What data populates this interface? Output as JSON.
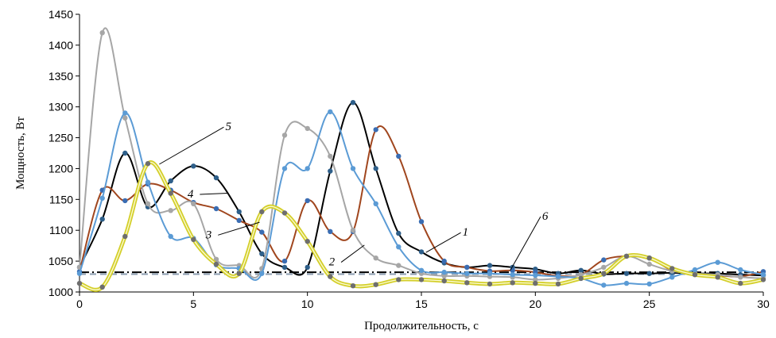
{
  "chart_data": {
    "type": "line",
    "title": "",
    "xlabel": "Продолжительность, с",
    "ylabel": "Мощность, Вт",
    "xlim": [
      0,
      30
    ],
    "ylim": [
      1000,
      1450
    ],
    "xticks": [
      0,
      5,
      10,
      15,
      20,
      25,
      30
    ],
    "yticks": [
      1000,
      1050,
      1100,
      1150,
      1200,
      1250,
      1300,
      1350,
      1400,
      1450
    ],
    "grid": false,
    "legend": "none",
    "series": [
      {
        "key": "black",
        "color": "#000000",
        "marker": "#2e5f8a",
        "style": "line",
        "x": [
          0,
          1,
          2,
          3,
          4,
          5,
          6,
          7,
          8,
          9,
          10,
          11,
          12,
          13,
          14,
          15,
          16,
          17,
          18,
          19,
          20,
          21,
          22,
          23,
          24,
          25,
          26,
          27,
          28,
          29,
          30
        ],
        "y": [
          1040,
          1118,
          1225,
          1138,
          1180,
          1204,
          1185,
          1130,
          1062,
          1040,
          1040,
          1196,
          1307,
          1200,
          1095,
          1065,
          1047,
          1040,
          1043,
          1040,
          1037,
          1030,
          1035,
          1029,
          1030,
          1030,
          1031,
          1030,
          1030,
          1028,
          1027
        ]
      },
      {
        "key": "brown",
        "color": "#a0461e",
        "marker": "#3a6db3",
        "style": "line",
        "x": [
          0,
          1,
          2,
          3,
          4,
          5,
          6,
          7,
          8,
          9,
          10,
          11,
          12,
          13,
          14,
          15,
          16,
          17,
          18,
          19,
          20,
          21,
          22,
          23,
          24,
          25,
          26,
          27,
          28,
          29,
          30
        ],
        "y": [
          1033,
          1165,
          1148,
          1175,
          1165,
          1145,
          1135,
          1116,
          1097,
          1050,
          1148,
          1098,
          1098,
          1263,
          1220,
          1114,
          1050,
          1040,
          1034,
          1035,
          1032,
          1026,
          1028,
          1052,
          1058,
          1055,
          1035,
          1030,
          1027,
          1025,
          1033
        ]
      },
      {
        "key": "gray",
        "color": "#a6a6a6",
        "marker": "#a6a6a6",
        "style": "line",
        "x": [
          0,
          1,
          2,
          3,
          4,
          5,
          6,
          7,
          8,
          9,
          10,
          11,
          12,
          13,
          14,
          15,
          16,
          17,
          18,
          19,
          20,
          21,
          22,
          23,
          24,
          25,
          26,
          27,
          28,
          29,
          30
        ],
        "y": [
          1040,
          1420,
          1282,
          1143,
          1132,
          1143,
          1053,
          1043,
          1038,
          1254,
          1265,
          1220,
          1100,
          1055,
          1043,
          1030,
          1026,
          1026,
          1025,
          1024,
          1020,
          1022,
          1028,
          1040,
          1058,
          1045,
          1034,
          1030,
          1028,
          1024,
          1022
        ]
      },
      {
        "key": "blue",
        "color": "#5b9bd5",
        "marker": "#5b9bd5",
        "style": "line",
        "x": [
          0,
          1,
          2,
          3,
          4,
          5,
          6,
          7,
          8,
          9,
          10,
          11,
          12,
          13,
          14,
          15,
          16,
          17,
          18,
          19,
          20,
          21,
          22,
          23,
          24,
          25,
          26,
          27,
          28,
          29,
          30
        ],
        "y": [
          1030,
          1152,
          1290,
          1178,
          1090,
          1087,
          1044,
          1038,
          1030,
          1200,
          1200,
          1292,
          1200,
          1143,
          1073,
          1035,
          1032,
          1030,
          1030,
          1028,
          1027,
          1025,
          1022,
          1011,
          1014,
          1013,
          1024,
          1036,
          1048,
          1036,
          1028
        ]
      },
      {
        "key": "yellow",
        "color": "#d4cf2b",
        "marker": "#6e6e6e",
        "style": "double",
        "x": [
          0,
          1,
          2,
          3,
          4,
          5,
          6,
          7,
          8,
          9,
          10,
          11,
          12,
          13,
          14,
          15,
          16,
          17,
          18,
          19,
          20,
          21,
          22,
          23,
          24,
          25,
          26,
          27,
          28,
          29,
          30
        ],
        "y": [
          1014,
          1008,
          1090,
          1208,
          1160,
          1085,
          1045,
          1030,
          1130,
          1128,
          1082,
          1025,
          1010,
          1012,
          1020,
          1020,
          1018,
          1015,
          1013,
          1015,
          1014,
          1013,
          1022,
          1030,
          1058,
          1055,
          1038,
          1028,
          1024,
          1014,
          1020
        ]
      }
    ],
    "reference_lines": [
      {
        "key": "dashdot-black",
        "color": "#000000",
        "y": 1032,
        "style": "dashdot"
      },
      {
        "key": "dashed-gray",
        "color": "#8c9eb0",
        "y": 1029,
        "style": "dashed"
      }
    ],
    "annotations": [
      {
        "label": "5",
        "text_x": 6.4,
        "text_y": 1262,
        "point_x": 3.5,
        "point_y": 1207
      },
      {
        "label": "4",
        "text_x": 5.0,
        "text_y": 1153,
        "point_x": 6.5,
        "point_y": 1160
      },
      {
        "label": "3",
        "text_x": 5.8,
        "text_y": 1087,
        "point_x": 7.9,
        "point_y": 1113
      },
      {
        "label": "2",
        "text_x": 11.2,
        "text_y": 1043,
        "point_x": 12.5,
        "point_y": 1076
      },
      {
        "label": "1",
        "text_x": 16.8,
        "text_y": 1091,
        "point_x": 15.2,
        "point_y": 1064
      },
      {
        "label": "6",
        "text_x": 20.3,
        "text_y": 1117,
        "point_x": 18.9,
        "point_y": 1035
      }
    ]
  }
}
